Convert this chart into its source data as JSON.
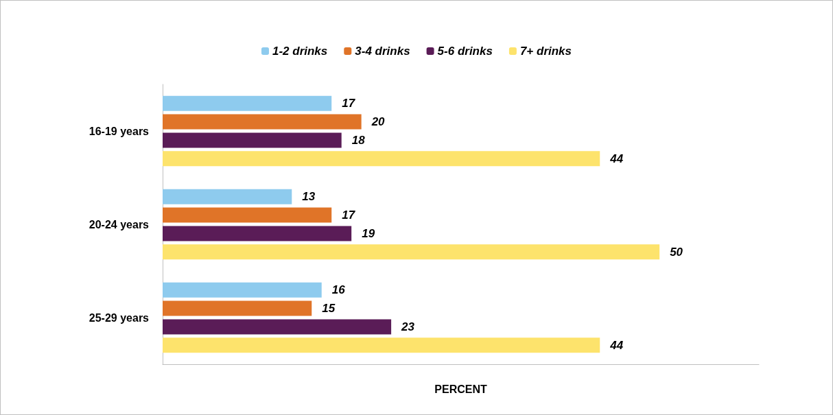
{
  "chart_data": {
    "type": "bar",
    "orientation": "horizontal",
    "xlabel": "PERCENT",
    "categories": [
      "16-19 years",
      "20-24 years",
      "25-29 years"
    ],
    "series": [
      {
        "name": "1-2 drinks",
        "color": "#8ecbee",
        "values": [
          17,
          13,
          16
        ]
      },
      {
        "name": "3-4 drinks",
        "color": "#e07428",
        "values": [
          20,
          17,
          15
        ]
      },
      {
        "name": "5-6 drinks",
        "color": "#5a1c57",
        "values": [
          18,
          19,
          23
        ]
      },
      {
        "name": "7+ drinks",
        "color": "#fde36c",
        "values": [
          44,
          50,
          44
        ]
      }
    ],
    "xlim": [
      0,
      60
    ],
    "tick_labels": "y",
    "data_labels": true,
    "legend": "top",
    "grid": false
  }
}
